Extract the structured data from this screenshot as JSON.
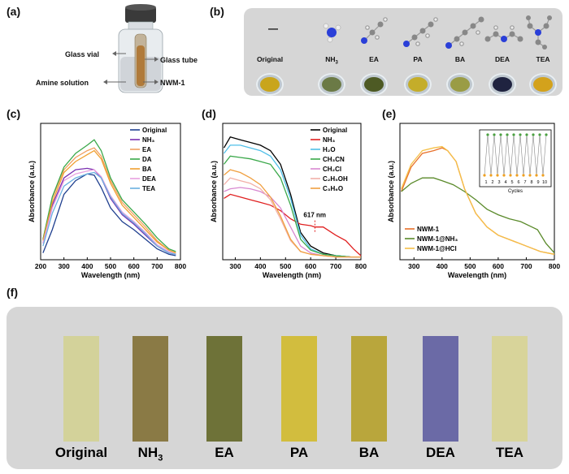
{
  "labels": {
    "a": "(a)",
    "b": "(b)",
    "c": "(c)",
    "d": "(d)",
    "e": "(e)",
    "f": "(f)"
  },
  "panel_a": {
    "glass_vial": "Glass vial",
    "glass_tube": "Glass tube",
    "amine_solution": "Amine solution",
    "nwm": "NWM-1"
  },
  "panel_b": {
    "dash": "—",
    "names": [
      "Original",
      "NH3",
      "EA",
      "PA",
      "BA",
      "DEA",
      "TEA"
    ],
    "powder_colors": [
      "#c9a51c",
      "#6b7a46",
      "#4d5a24",
      "#c4ad2a",
      "#9a9c45",
      "#1f2340",
      "#d3a21c"
    ]
  },
  "panel_f": {
    "names": [
      "Original",
      "NH3",
      "EA",
      "PA",
      "BA",
      "DEA",
      "TEA"
    ],
    "strip_colors": [
      "#d3d29a",
      "#8a7a45",
      "#6e7238",
      "#d2bd3e",
      "#b9a63c",
      "#6b6aa6",
      "#d8d49a"
    ]
  },
  "chart_data": [
    {
      "type": "line",
      "panel": "c",
      "xlabel": "Wavelength (nm)",
      "ylabel": "Absorbance (a.u.)",
      "xlim": [
        200,
        800
      ],
      "xticks": [
        200,
        300,
        400,
        500,
        600,
        700,
        800
      ],
      "legend": "top-right",
      "series": [
        {
          "name": "Original",
          "color": "#1f3f8f",
          "x": [
            210,
            250,
            300,
            350,
            400,
            430,
            460,
            500,
            550,
            600,
            650,
            700,
            750,
            780
          ],
          "y": [
            0.05,
            0.22,
            0.48,
            0.58,
            0.63,
            0.62,
            0.53,
            0.38,
            0.28,
            0.22,
            0.15,
            0.08,
            0.04,
            0.03
          ]
        },
        {
          "name": "NH3",
          "color": "#7a2fb0",
          "x": [
            210,
            250,
            300,
            350,
            400,
            430,
            460,
            500,
            550,
            600,
            650,
            700,
            750,
            780
          ],
          "y": [
            0.12,
            0.4,
            0.6,
            0.66,
            0.67,
            0.66,
            0.6,
            0.45,
            0.33,
            0.26,
            0.18,
            0.1,
            0.05,
            0.04
          ]
        },
        {
          "name": "EA",
          "color": "#f0a060",
          "x": [
            210,
            250,
            300,
            350,
            400,
            430,
            460,
            500,
            550,
            600,
            650,
            700,
            750,
            780
          ],
          "y": [
            0.15,
            0.45,
            0.66,
            0.75,
            0.8,
            0.82,
            0.76,
            0.58,
            0.42,
            0.33,
            0.24,
            0.14,
            0.07,
            0.05
          ]
        },
        {
          "name": "DA",
          "color": "#3aa84a",
          "x": [
            210,
            250,
            300,
            350,
            400,
            430,
            460,
            500,
            550,
            600,
            650,
            700,
            750,
            780
          ],
          "y": [
            0.15,
            0.46,
            0.68,
            0.78,
            0.84,
            0.88,
            0.8,
            0.6,
            0.44,
            0.35,
            0.26,
            0.16,
            0.08,
            0.06
          ]
        },
        {
          "name": "BA",
          "color": "#f0a030",
          "x": [
            210,
            250,
            300,
            350,
            400,
            430,
            460,
            500,
            550,
            600,
            650,
            700,
            750,
            780
          ],
          "y": [
            0.14,
            0.42,
            0.64,
            0.72,
            0.77,
            0.8,
            0.74,
            0.56,
            0.4,
            0.31,
            0.22,
            0.13,
            0.07,
            0.05
          ]
        },
        {
          "name": "DEA",
          "color": "#e8a0e0",
          "x": [
            210,
            250,
            300,
            350,
            400,
            430,
            460,
            500,
            550,
            600,
            650,
            700,
            750,
            780
          ],
          "y": [
            0.12,
            0.38,
            0.58,
            0.63,
            0.65,
            0.66,
            0.61,
            0.47,
            0.35,
            0.28,
            0.2,
            0.11,
            0.06,
            0.04
          ]
        },
        {
          "name": "TEA",
          "color": "#6bb0e0",
          "x": [
            210,
            250,
            300,
            350,
            400,
            430,
            460,
            500,
            550,
            600,
            650,
            700,
            750,
            780
          ],
          "y": [
            0.1,
            0.34,
            0.54,
            0.6,
            0.63,
            0.64,
            0.6,
            0.46,
            0.34,
            0.27,
            0.19,
            0.1,
            0.05,
            0.04
          ]
        }
      ]
    },
    {
      "type": "line",
      "panel": "d",
      "xlabel": "Wavelength (nm)",
      "ylabel": "Absorbance (a.u.)",
      "xlim": [
        250,
        800
      ],
      "xticks": [
        300,
        400,
        500,
        600,
        700,
        800
      ],
      "legend": "top-right",
      "annotation": "617 nm",
      "series": [
        {
          "name": "Original",
          "color": "#000000",
          "x": [
            255,
            280,
            320,
            360,
            400,
            440,
            480,
            520,
            560,
            600,
            650,
            700,
            760,
            800
          ],
          "y": [
            0.82,
            0.9,
            0.88,
            0.86,
            0.84,
            0.8,
            0.7,
            0.48,
            0.2,
            0.1,
            0.05,
            0.03,
            0.02,
            0.02
          ]
        },
        {
          "name": "NH3",
          "color": "#e02020",
          "x": [
            255,
            280,
            320,
            360,
            400,
            440,
            480,
            520,
            560,
            600,
            617,
            650,
            700,
            740,
            770,
            800
          ],
          "y": [
            0.45,
            0.48,
            0.46,
            0.44,
            0.42,
            0.4,
            0.36,
            0.3,
            0.26,
            0.25,
            0.24,
            0.24,
            0.18,
            0.14,
            0.08,
            0.03
          ]
        },
        {
          "name": "H2O",
          "color": "#4fbfe8",
          "x": [
            255,
            280,
            320,
            360,
            400,
            440,
            480,
            520,
            560,
            600,
            650,
            700,
            760,
            800
          ],
          "y": [
            0.78,
            0.84,
            0.84,
            0.82,
            0.8,
            0.76,
            0.66,
            0.45,
            0.18,
            0.08,
            0.04,
            0.03,
            0.02,
            0.02
          ]
        },
        {
          "name": "CH3CN",
          "color": "#3aa84a",
          "x": [
            255,
            280,
            320,
            360,
            400,
            440,
            480,
            520,
            560,
            600,
            650,
            700,
            760,
            800
          ],
          "y": [
            0.7,
            0.76,
            0.75,
            0.74,
            0.72,
            0.7,
            0.6,
            0.4,
            0.15,
            0.07,
            0.04,
            0.03,
            0.02,
            0.02
          ]
        },
        {
          "name": "CH2Cl",
          "color": "#d888d0",
          "x": [
            255,
            280,
            320,
            360,
            400,
            440,
            480,
            520,
            560,
            600,
            650,
            700,
            760,
            800
          ],
          "y": [
            0.5,
            0.52,
            0.53,
            0.52,
            0.5,
            0.46,
            0.38,
            0.24,
            0.1,
            0.05,
            0.03,
            0.02,
            0.02,
            0.02
          ]
        },
        {
          "name": "C2H5OH",
          "color": "#f2b0a8",
          "x": [
            255,
            280,
            320,
            360,
            400,
            440,
            480,
            520,
            560,
            600,
            650,
            700,
            760,
            800
          ],
          "y": [
            0.55,
            0.6,
            0.58,
            0.56,
            0.52,
            0.44,
            0.3,
            0.14,
            0.06,
            0.04,
            0.03,
            0.02,
            0.02,
            0.02
          ]
        },
        {
          "name": "C3H6O",
          "color": "#f0a040",
          "x": [
            255,
            280,
            320,
            360,
            400,
            440,
            480,
            520,
            560,
            600,
            650,
            700,
            760,
            800
          ],
          "y": [
            0.62,
            0.66,
            0.64,
            0.6,
            0.55,
            0.46,
            0.32,
            0.15,
            0.06,
            0.04,
            0.03,
            0.02,
            0.02,
            0.02
          ]
        }
      ]
    },
    {
      "type": "line",
      "panel": "e",
      "xlabel": "Wavelength (nm)",
      "ylabel": "Absorbance (a.u.)",
      "xlim": [
        250,
        800
      ],
      "xticks": [
        300,
        400,
        500,
        600,
        700,
        800
      ],
      "legend": "bottom-left",
      "inset_xlabel": "Cycles",
      "inset_ticks": [
        "1",
        "2",
        "3",
        "4",
        "5",
        "6",
        "7",
        "8",
        "9",
        "10"
      ],
      "series": [
        {
          "name": "NWM-1",
          "color": "#e8702a",
          "x": [
            255,
            290,
            330,
            370,
            400,
            420,
            450,
            480,
            520,
            560,
            600,
            650,
            700,
            750,
            800
          ],
          "y": [
            0.5,
            0.68,
            0.78,
            0.8,
            0.82,
            0.8,
            0.72,
            0.52,
            0.34,
            0.24,
            0.18,
            0.14,
            0.1,
            0.06,
            0.04
          ]
        },
        {
          "name": "NWM-1@NH3",
          "color": "#5a8a2a",
          "x": [
            255,
            290,
            330,
            370,
            400,
            440,
            480,
            520,
            560,
            600,
            640,
            680,
            720,
            740,
            770,
            800
          ],
          "y": [
            0.5,
            0.56,
            0.6,
            0.6,
            0.58,
            0.55,
            0.5,
            0.44,
            0.37,
            0.33,
            0.3,
            0.28,
            0.24,
            0.22,
            0.12,
            0.05
          ]
        },
        {
          "name": "NWM-1@HCl",
          "color": "#f5c048",
          "x": [
            255,
            290,
            330,
            370,
            400,
            420,
            450,
            480,
            520,
            560,
            600,
            650,
            700,
            750,
            800
          ],
          "y": [
            0.52,
            0.7,
            0.8,
            0.82,
            0.83,
            0.8,
            0.72,
            0.52,
            0.34,
            0.24,
            0.18,
            0.14,
            0.1,
            0.06,
            0.04
          ]
        }
      ]
    }
  ]
}
